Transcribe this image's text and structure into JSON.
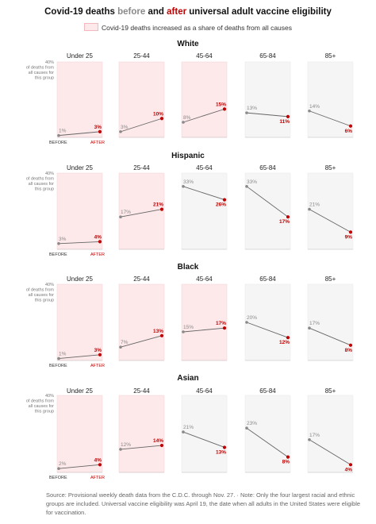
{
  "title": {
    "prefix": "Covid-19 deaths ",
    "before_word": "before",
    "middle": " and ",
    "after_word": "after",
    "suffix": " universal adult vaccine eligibility"
  },
  "legend": {
    "label": "Covid-19 deaths increased as a share of deaths from all causes",
    "color": "#fde8ea"
  },
  "colors": {
    "before": "#8a8a8a",
    "after": "#c00000",
    "increase_bg": "#fde8ea",
    "decrease_bg": "#f5f5f5"
  },
  "chart_data": {
    "type": "line",
    "x": [
      "BEFORE",
      "AFTER"
    ],
    "y_axis_label": [
      "40%",
      "of deaths from",
      "all causes for",
      "this group"
    ],
    "ylim": [
      0,
      40
    ],
    "age_groups": [
      "Under 25",
      "25-44",
      "45-64",
      "65-84",
      "85+"
    ],
    "groups": [
      {
        "name": "White",
        "panels": [
          {
            "age": "Under 25",
            "before": 1,
            "after": 3
          },
          {
            "age": "25-44",
            "before": 3,
            "after": 10
          },
          {
            "age": "45-64",
            "before": 8,
            "after": 15
          },
          {
            "age": "65-84",
            "before": 13,
            "after": 11
          },
          {
            "age": "85+",
            "before": 14,
            "after": 6
          }
        ]
      },
      {
        "name": "Hispanic",
        "panels": [
          {
            "age": "Under 25",
            "before": 3,
            "after": 4
          },
          {
            "age": "25-44",
            "before": 17,
            "after": 21
          },
          {
            "age": "45-64",
            "before": 33,
            "after": 26
          },
          {
            "age": "65-84",
            "before": 33,
            "after": 17
          },
          {
            "age": "85+",
            "before": 21,
            "after": 9
          }
        ]
      },
      {
        "name": "Black",
        "panels": [
          {
            "age": "Under 25",
            "before": 1,
            "after": 3
          },
          {
            "age": "25-44",
            "before": 7,
            "after": 13
          },
          {
            "age": "45-64",
            "before": 15,
            "after": 17
          },
          {
            "age": "65-84",
            "before": 20,
            "after": 12
          },
          {
            "age": "85+",
            "before": 17,
            "after": 8
          }
        ]
      },
      {
        "name": "Asian",
        "panels": [
          {
            "age": "Under 25",
            "before": 2,
            "after": 4
          },
          {
            "age": "25-44",
            "before": 12,
            "after": 14
          },
          {
            "age": "45-64",
            "before": 21,
            "after": 13
          },
          {
            "age": "65-84",
            "before": 23,
            "after": 8
          },
          {
            "age": "85+",
            "before": 17,
            "after": 4
          }
        ]
      }
    ]
  },
  "footnote": "Source: Provisional weekly death data from the C.D.C. through Nov. 27.  ·  Note: Only the four largest racial and ethnic groups are included. Universal vaccine eligibility was April 19, the date when all adults in the United States were eligible for vaccination."
}
